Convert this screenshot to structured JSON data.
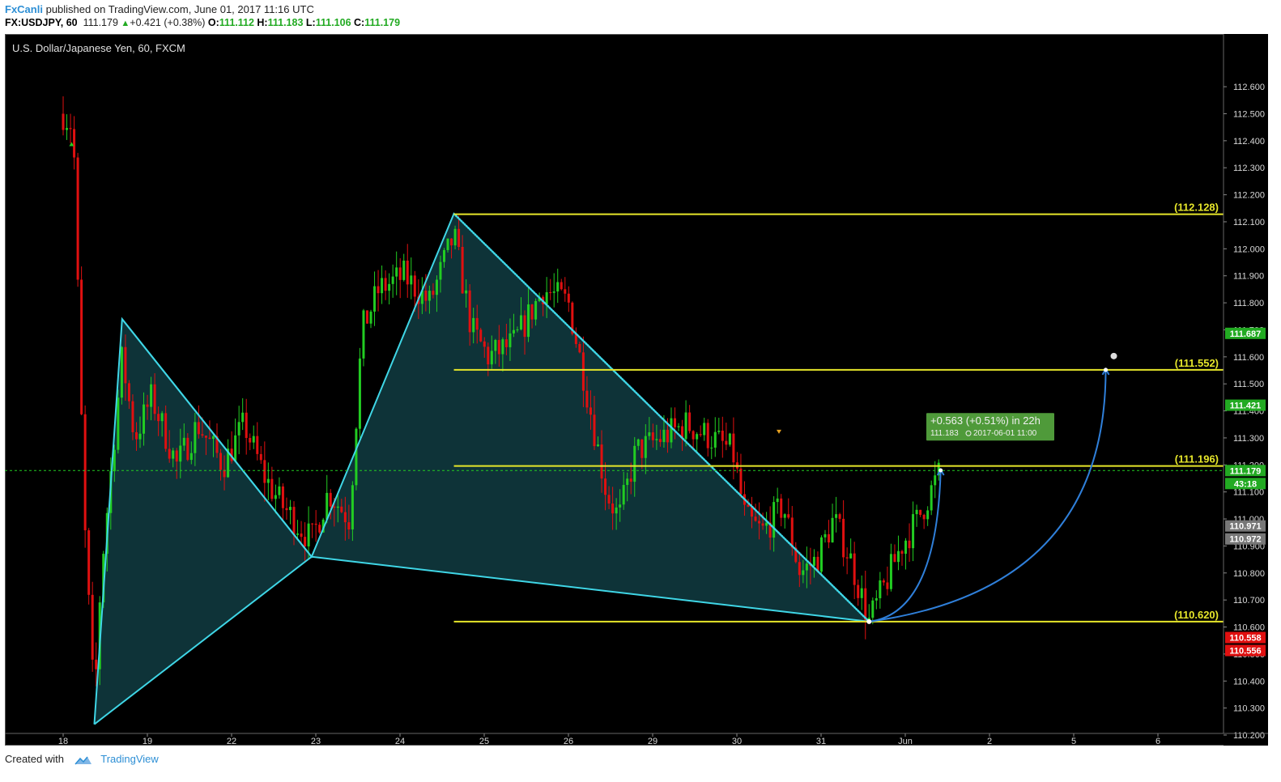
{
  "header": {
    "user": "FxCanli",
    "published_text": "published on TradingView.com, June 01, 2017 11:16 UTC",
    "symbol": "FX:USDJPY, 60",
    "last": "111.179",
    "change": "+0.421 (+0.38%)",
    "o_label": "O:",
    "o_value": "111.112",
    "h_label": "H:",
    "h_value": "111.183",
    "l_label": "L:",
    "l_value": "111.106",
    "c_label": "C:",
    "c_value": "111.179"
  },
  "footer": {
    "created_with": "Created with",
    "brand": "TradingView"
  },
  "chart_data": {
    "type": "candlestick",
    "title": "U.S. Dollar/Japanese Yen, 60, FXCM",
    "ylim": [
      110.1,
      112.7
    ],
    "y_ticks": [
      "112.600",
      "112.500",
      "112.400",
      "112.300",
      "112.200",
      "112.100",
      "112.000",
      "111.900",
      "111.800",
      "111.700",
      "111.600",
      "111.500",
      "111.400",
      "111.300",
      "111.200",
      "111.100",
      "111.000",
      "110.900",
      "110.800",
      "110.700",
      "110.600",
      "110.500",
      "110.400",
      "110.300",
      "110.200"
    ],
    "x_ticks": [
      "18",
      "19",
      "22",
      "23",
      "24",
      "25",
      "26",
      "29",
      "30",
      "31",
      "Jun",
      "2",
      "5",
      "6"
    ],
    "grid": false,
    "colors": {
      "background": "#000000",
      "up": "#22cc22",
      "down": "#e01010",
      "pattern": "#3fd6e6",
      "level": "#e6e62a",
      "projection": "#2f7fd9"
    },
    "levels": [
      {
        "label": "(112.128)",
        "value": 112.128
      },
      {
        "label": "(111.552)",
        "value": 111.552
      },
      {
        "label": "(111.196)",
        "value": 111.196
      },
      {
        "label": "(110.620)",
        "value": 110.62
      }
    ],
    "pattern_points": [
      {
        "date": "May 18",
        "price": 110.24
      },
      {
        "date": "May 19",
        "price": 111.74
      },
      {
        "date": "May 23",
        "price": 110.86
      },
      {
        "date": "May 24",
        "price": 112.13
      },
      {
        "date": "May 31",
        "price": 110.62
      }
    ],
    "price_tags": [
      {
        "value": "111.687",
        "color": "#22aa22"
      },
      {
        "value": "111.421",
        "color": "#22aa22"
      },
      {
        "value": "111.179",
        "color": "#22aa22"
      },
      {
        "value": "43:18",
        "color": "#22aa22"
      },
      {
        "value": "110.971",
        "color": "#777777"
      },
      {
        "value": "110.972",
        "color": "#777777"
      },
      {
        "value": "110.558",
        "color": "#e01010"
      },
      {
        "value": "110.556",
        "color": "#e01010"
      }
    ],
    "current_price": 111.179,
    "annotation": {
      "line1": "+0.563 (+0.51%) in 22h",
      "line2_price": "111.183",
      "line2_time": "2017-06-01  11:00"
    }
  }
}
